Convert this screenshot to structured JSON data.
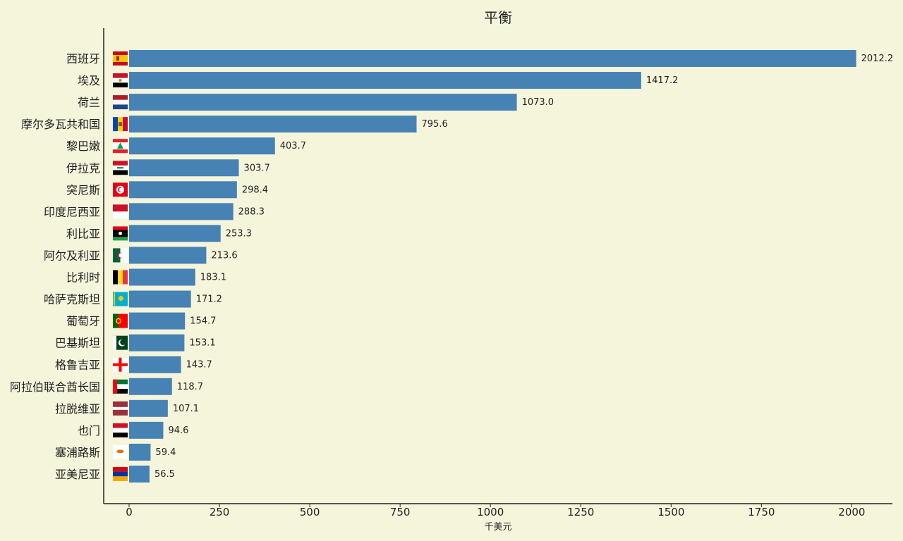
{
  "chart_data": {
    "type": "bar",
    "orientation": "horizontal",
    "title": "平衡",
    "xlabel": "千美元",
    "ylabel": "",
    "xlim": [
      -70,
      2120
    ],
    "xticks": [
      0,
      250,
      500,
      750,
      1000,
      1250,
      1500,
      1750,
      2000
    ],
    "xtick_labels": [
      "0",
      "250",
      "500",
      "750",
      "1000",
      "1250",
      "1500",
      "1750",
      "2000"
    ],
    "grid": false,
    "bar_color": "#4682b4",
    "background": "#f5f5dc",
    "categories": [
      "西班牙",
      "埃及",
      "荷兰",
      "摩尔多瓦共和国",
      "黎巴嫩",
      "伊拉克",
      "突尼斯",
      "印度尼西亚",
      "利比亚",
      "阿尔及利亚",
      "比利时",
      "哈萨克斯坦",
      "葡萄牙",
      "巴基斯坦",
      "格鲁吉亚",
      "阿拉伯联合酋长国",
      "拉脱维亚",
      "也门",
      "塞浦路斯",
      "亚美尼亚"
    ],
    "values": [
      2012.2,
      1417.2,
      1073.0,
      795.6,
      403.7,
      303.7,
      298.4,
      288.3,
      253.3,
      213.6,
      183.1,
      171.2,
      154.7,
      153.1,
      143.7,
      118.7,
      107.1,
      94.6,
      59.4,
      56.5
    ],
    "value_labels": [
      "2012.2",
      "1417.2",
      "1073.0",
      "795.6",
      "403.7",
      "303.7",
      "298.4",
      "288.3",
      "253.3",
      "213.6",
      "183.1",
      "171.2",
      "154.7",
      "153.1",
      "143.7",
      "118.7",
      "107.1",
      "94.6",
      "59.4",
      "56.5"
    ],
    "flags": [
      "spain-flag-icon",
      "egypt-flag-icon",
      "netherlands-flag-icon",
      "moldova-flag-icon",
      "lebanon-flag-icon",
      "iraq-flag-icon",
      "tunisia-flag-icon",
      "indonesia-flag-icon",
      "libya-flag-icon",
      "algeria-flag-icon",
      "belgium-flag-icon",
      "kazakhstan-flag-icon",
      "portugal-flag-icon",
      "pakistan-flag-icon",
      "georgia-flag-icon",
      "uae-flag-icon",
      "latvia-flag-icon",
      "yemen-flag-icon",
      "cyprus-flag-icon",
      "armenia-flag-icon"
    ]
  }
}
